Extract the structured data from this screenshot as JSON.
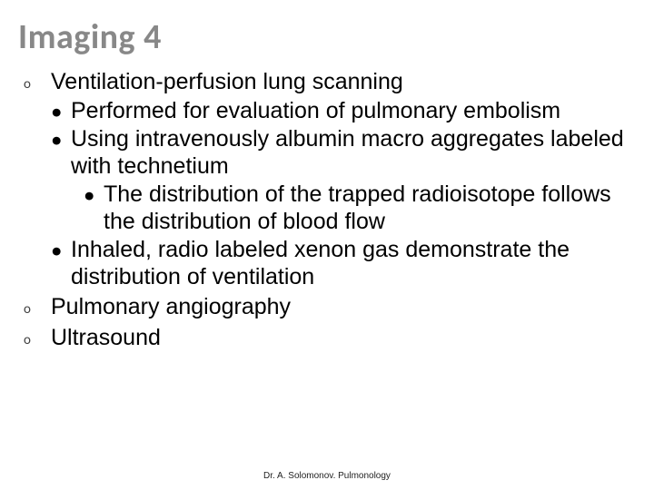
{
  "title": "Imaging 4",
  "bullets": {
    "item1": {
      "marker": "o",
      "text": "Ventilation-perfusion lung scanning",
      "sub1": {
        "marker": "•",
        "text": "Performed for evaluation of pulmonary embolism"
      },
      "sub2": {
        "marker": "•",
        "text": "Using intravenously albumin macro aggregates labeled with technetium",
        "subsub1": {
          "marker": "•",
          "text": "The distribution of the trapped radioisotope follows the distribution of blood flow"
        }
      },
      "sub3": {
        "marker": "•",
        "text": "Inhaled, radio labeled xenon gas demonstrate the distribution of ventilation"
      }
    },
    "item2": {
      "marker": "o",
      "text": "Pulmonary angiography"
    },
    "item3": {
      "marker": "o",
      "text": "Ultrasound"
    }
  },
  "footer": "Dr. A. Solomonov. Pulmonology",
  "colors": {
    "title": "#888888",
    "body_text": "#000000",
    "background": "#ffffff"
  },
  "fonts": {
    "title_size_pt": 38,
    "body_size_pt": 25,
    "footer_size_pt": 10
  }
}
